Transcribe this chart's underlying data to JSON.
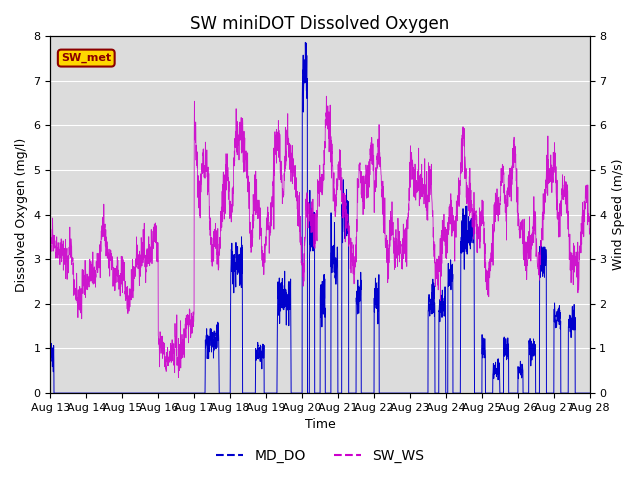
{
  "title": "SW miniDOT Dissolved Oxygen",
  "ylabel_left": "Dissolved Oxygen (mg/l)",
  "ylabel_right": "Wind Speed (m/s)",
  "xlabel": "Time",
  "ylim": [
    0.0,
    8.0
  ],
  "yticks": [
    0.0,
    1.0,
    2.0,
    3.0,
    4.0,
    5.0,
    6.0,
    7.0,
    8.0
  ],
  "annotation_text": "SW_met",
  "annotation_color": "#8B0000",
  "annotation_bg": "#FFD700",
  "line_do_color": "#0000CC",
  "line_ws_color": "#CC00CC",
  "legend_do_label": "MD_DO",
  "legend_ws_label": "SW_WS",
  "xstart_day": 13,
  "xend_day": 28,
  "n_points": 3000,
  "background_color": "#DCDCDC",
  "title_fontsize": 12,
  "axis_label_fontsize": 9,
  "tick_fontsize": 8
}
